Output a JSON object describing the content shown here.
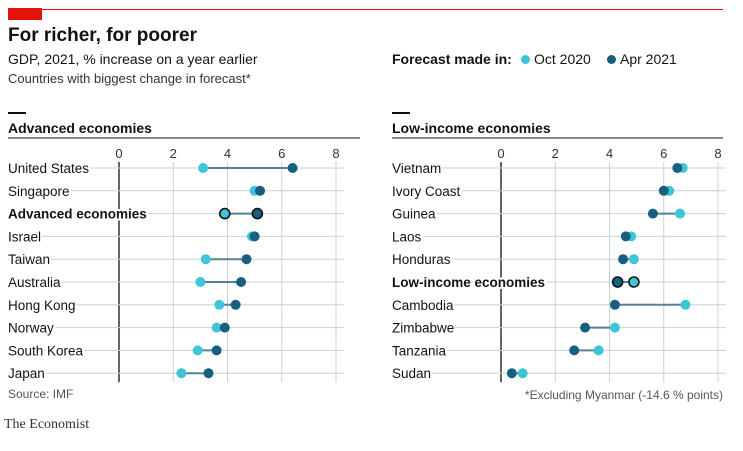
{
  "header": {
    "title": "For richer, for poorer",
    "subtitle": "GDP, 2021, % increase on a year earlier",
    "note": "Countries with biggest change in forecast*"
  },
  "legend": {
    "title": "Forecast made in:",
    "items": [
      {
        "label": "Oct 2020",
        "color": "#3ec6d8"
      },
      {
        "label": "Apr 2021",
        "color": "#17607f"
      }
    ]
  },
  "footer": {
    "source": "Source: IMF",
    "footnote": "*Excluding Myanmar (-14.6 % points)",
    "brand": "The Economist"
  },
  "chart_data": [
    {
      "type": "dot-range",
      "title": "Advanced economies",
      "xlim": [
        0,
        8
      ],
      "xticks": [
        0,
        2,
        4,
        6,
        8
      ],
      "grid": true,
      "highlight": "Advanced economies",
      "categories": [
        "United States",
        "Singapore",
        "Advanced economies",
        "Israel",
        "Taiwan",
        "Australia",
        "Hong Kong",
        "Norway",
        "South Korea",
        "Japan"
      ],
      "series": [
        {
          "name": "Oct 2020",
          "values": [
            3.1,
            5.0,
            3.9,
            4.9,
            3.2,
            3.0,
            3.7,
            3.6,
            2.9,
            2.3
          ]
        },
        {
          "name": "Apr 2021",
          "values": [
            6.4,
            5.2,
            5.1,
            5.0,
            4.7,
            4.5,
            4.3,
            3.9,
            3.6,
            3.3
          ]
        }
      ]
    },
    {
      "type": "dot-range",
      "title": "Low-income economies",
      "xlim": [
        0,
        8
      ],
      "xticks": [
        0,
        2,
        4,
        6,
        8
      ],
      "grid": true,
      "highlight": "Low-income economies",
      "categories": [
        "Vietnam",
        "Ivory Coast",
        "Guinea",
        "Laos",
        "Honduras",
        "Low-income economies",
        "Cambodia",
        "Zimbabwe",
        "Tanzania",
        "Sudan"
      ],
      "series": [
        {
          "name": "Oct 2020",
          "values": [
            6.7,
            6.2,
            6.6,
            4.8,
            4.9,
            4.9,
            6.8,
            4.2,
            3.6,
            0.8
          ]
        },
        {
          "name": "Apr 2021",
          "values": [
            6.5,
            6.0,
            5.6,
            4.6,
            4.5,
            4.3,
            4.2,
            3.1,
            2.7,
            0.4
          ]
        }
      ]
    }
  ]
}
